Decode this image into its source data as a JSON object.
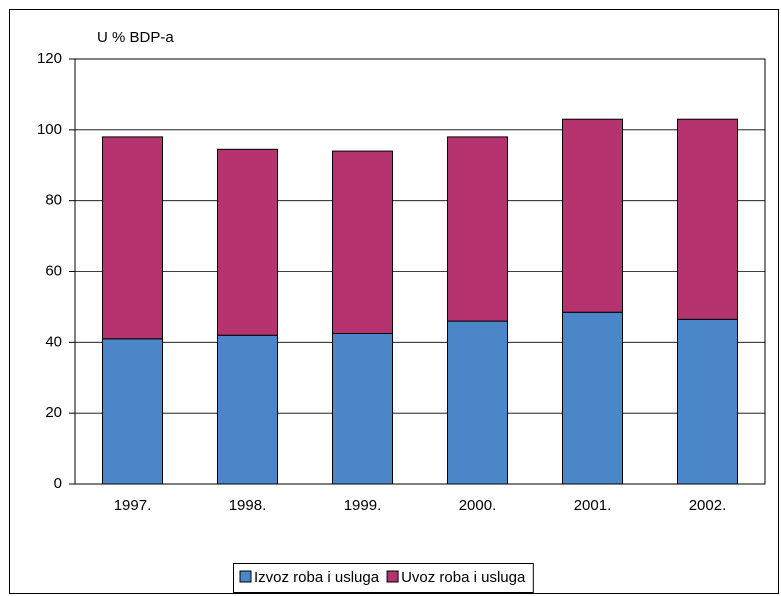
{
  "chart_data": {
    "type": "bar",
    "stacked": true,
    "y_label": "U %  BDP-a",
    "categories": [
      "1997.",
      "1998.",
      "1999.",
      "2000.",
      "2001.",
      "2002."
    ],
    "series": [
      {
        "name": "Izvoz roba i usluga",
        "color": "#4a86c8",
        "values": [
          41,
          42,
          42.5,
          46,
          48.5,
          46.5
        ]
      },
      {
        "name": "Uvoz roba i usluga",
        "color": "#b5336e",
        "values": [
          57,
          52.5,
          51.5,
          52,
          54.5,
          56.5
        ]
      }
    ],
    "ylim": [
      0,
      120
    ],
    "yticks": [
      0,
      20,
      40,
      60,
      80,
      100,
      120
    ],
    "grid": true,
    "legend": "bottom"
  }
}
